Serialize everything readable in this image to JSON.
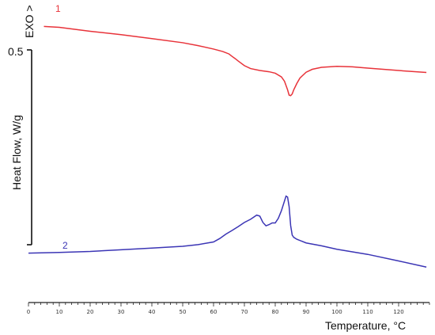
{
  "chart_data": {
    "type": "line",
    "xlabel": "Temperature, °C",
    "ylabel": "Heat Flow, W/g",
    "exo_label": "EXO >",
    "scale_bar_label": "0.5",
    "xlim": [
      0,
      130
    ],
    "x_ticks": [
      0,
      10,
      20,
      30,
      40,
      50,
      60,
      70,
      80,
      90,
      100,
      110,
      120
    ],
    "grid": false,
    "series": [
      {
        "name": "1",
        "color": "#e8333a",
        "x": [
          5,
          10,
          20,
          30,
          40,
          50,
          55,
          60,
          63,
          65,
          66,
          67,
          68,
          70,
          72,
          75,
          78,
          80,
          82,
          83,
          84,
          84.5,
          85,
          85.5,
          86,
          87,
          88,
          90,
          92,
          95,
          100,
          105,
          110,
          120,
          129
        ],
        "y": [
          0.0,
          -0.004,
          -0.02,
          -0.034,
          -0.05,
          -0.067,
          -0.079,
          -0.093,
          -0.103,
          -0.113,
          -0.123,
          -0.132,
          -0.142,
          -0.161,
          -0.173,
          -0.181,
          -0.186,
          -0.192,
          -0.207,
          -0.225,
          -0.26,
          -0.282,
          -0.284,
          -0.277,
          -0.26,
          -0.234,
          -0.212,
          -0.188,
          -0.176,
          -0.168,
          -0.164,
          -0.166,
          -0.171,
          -0.181,
          -0.189
        ]
      },
      {
        "name": "2",
        "color": "#3b35b5",
        "x": [
          0,
          10,
          20,
          30,
          40,
          50,
          55,
          60,
          62,
          64,
          66,
          68,
          70,
          72,
          74,
          75,
          76,
          77,
          78,
          79,
          80,
          81,
          82,
          83,
          83.5,
          84,
          84.5,
          85,
          85.5,
          86,
          87,
          90,
          95,
          100,
          110,
          120,
          129
        ],
        "y": [
          -0.93,
          -0.927,
          -0.923,
          -0.916,
          -0.909,
          -0.902,
          -0.895,
          -0.884,
          -0.87,
          -0.852,
          -0.837,
          -0.821,
          -0.804,
          -0.791,
          -0.774,
          -0.778,
          -0.804,
          -0.818,
          -0.813,
          -0.806,
          -0.806,
          -0.787,
          -0.756,
          -0.716,
          -0.696,
          -0.7,
          -0.739,
          -0.817,
          -0.856,
          -0.865,
          -0.873,
          -0.888,
          -0.9,
          -0.914,
          -0.935,
          -0.962,
          -0.987
        ]
      }
    ],
    "ylim": [
      -1.1,
      0.04
    ]
  }
}
